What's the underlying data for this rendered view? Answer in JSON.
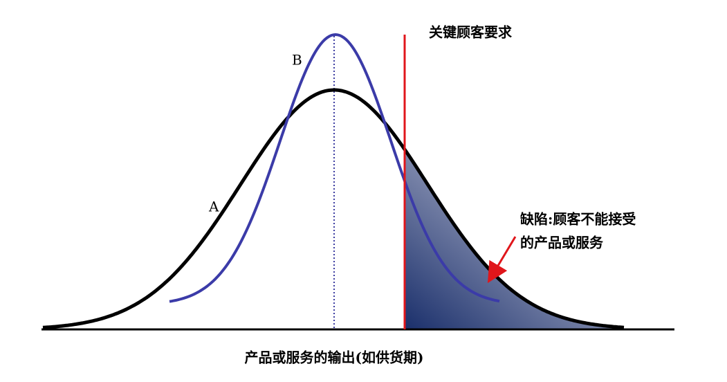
{
  "labels": {
    "curve_a": "A",
    "curve_b": "B",
    "requirement": "关键顾客要求",
    "defect_line1": "缺陷:顾客不能接受",
    "defect_line2": "的产品或服务",
    "x_axis": "产品或服务的输出(如供货期)"
  }
}
